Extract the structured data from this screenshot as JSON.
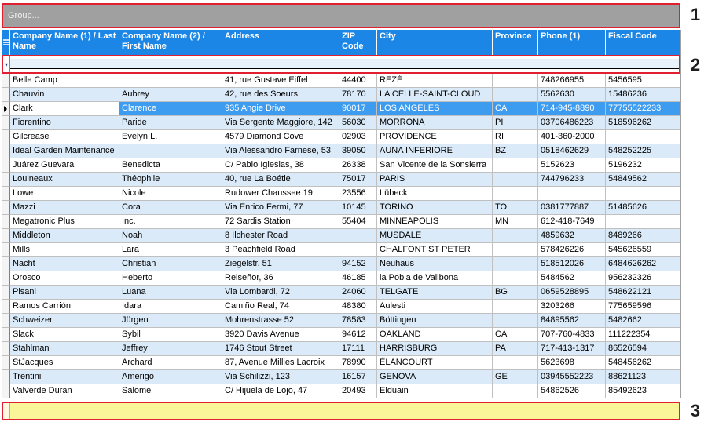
{
  "group_panel": {
    "placeholder": "Group..."
  },
  "callouts": [
    "1",
    "2",
    "3"
  ],
  "columns": [
    {
      "key": "c1",
      "label": "Company Name (1) / Last Name"
    },
    {
      "key": "c2",
      "label": "Company Name (2) / First Name"
    },
    {
      "key": "c3",
      "label": "Address"
    },
    {
      "key": "c4",
      "label": "ZIP Code"
    },
    {
      "key": "c5",
      "label": "City"
    },
    {
      "key": "c6",
      "label": "Province"
    },
    {
      "key": "c7",
      "label": "Phone (1)"
    },
    {
      "key": "c8",
      "label": "Fiscal Code"
    }
  ],
  "active_row_index": 2,
  "rows": [
    [
      "Belle Camp",
      "",
      "41, rue Gustave Eiffel",
      "44400",
      "REZÉ",
      "",
      "748266955",
      "5456595"
    ],
    [
      "Chauvin",
      "Aubrey",
      "42, rue des Soeurs",
      "78170",
      "LA CELLE-SAINT-CLOUD",
      "",
      "5562630",
      "15486236"
    ],
    [
      "Clark",
      "Clarence",
      "935 Angie Drive",
      "90017",
      "LOS ANGELES",
      "CA",
      "714-945-8890",
      "77755522233"
    ],
    [
      "Fiorentino",
      "Paride",
      "Via Sergente Maggiore, 142",
      "56030",
      "MORRONA",
      "PI",
      "03706486223",
      "518596262"
    ],
    [
      "Gilcrease",
      "Evelyn L.",
      "4579 Diamond Cove",
      "02903",
      "PROVIDENCE",
      "RI",
      "401-360-2000",
      ""
    ],
    [
      "Ideal Garden Maintenance",
      "",
      "Via Alessandro Farnese, 53",
      "39050",
      "AUNA INFERIORE",
      "BZ",
      "0518462629",
      "548252225"
    ],
    [
      "Juárez Guevara",
      "Benedicta",
      "C/ Pablo Iglesias, 38",
      "26338",
      "San Vicente de la Sonsierra",
      "",
      "5152623",
      "5196232"
    ],
    [
      "Louineaux",
      "Théophile",
      "40, rue La Boétie",
      "75017",
      "PARIS",
      "",
      "744796233",
      "54849562"
    ],
    [
      "Lowe",
      "Nicole",
      "Rudower Chaussee 19",
      "23556",
      "Lübeck",
      "",
      "",
      ""
    ],
    [
      "Mazzi",
      "Cora",
      "Via Enrico Fermi, 77",
      "10145",
      "TORINO",
      "TO",
      "0381777887",
      "51485626"
    ],
    [
      "Megatronic Plus",
      "Inc.",
      "72 Sardis Station",
      "55404",
      "MINNEAPOLIS",
      "MN",
      "612-418-7649",
      ""
    ],
    [
      "Middleton",
      "Noah",
      "8 Ilchester Road",
      "",
      "MUSDALE",
      "",
      "4859632",
      "8489266"
    ],
    [
      "Mills",
      "Lara",
      "3 Peachfield Road",
      "",
      "CHALFONT ST PETER",
      "",
      "578426226",
      "545626559"
    ],
    [
      "Nacht",
      "Christian",
      "Ziegelstr. 51",
      "94152",
      "Neuhaus",
      "",
      "518512026",
      "6484626262"
    ],
    [
      "Orosco",
      "Heberto",
      "Reiseñor, 36",
      "46185",
      "la Pobla de Vallbona",
      "",
      "5484562",
      "956232326"
    ],
    [
      "Pisani",
      "Luana",
      "Via Lombardi, 72",
      "24060",
      "TELGATE",
      "BG",
      "0659528895",
      "548622121"
    ],
    [
      "Ramos Carrión",
      "Idara",
      "Camiño Real, 74",
      "48380",
      "Aulesti",
      "",
      "3203266",
      "775659596"
    ],
    [
      "Schweizer",
      "Jürgen",
      "Mohrenstrasse 52",
      "78583",
      "Böttingen",
      "",
      "84895562",
      "5482662"
    ],
    [
      "Slack",
      "Sybil",
      "3920 Davis Avenue",
      "94612",
      "OAKLAND",
      "CA",
      "707-760-4833",
      "111222354"
    ],
    [
      "Stahlman",
      "Jeffrey",
      "1746 Stout Street",
      "17111",
      "HARRISBURG",
      "PA",
      "717-413-1317",
      "86526594"
    ],
    [
      "StJacques",
      "Archard",
      "87, Avenue Millies Lacroix",
      "78990",
      "ÉLANCOURT",
      "",
      "5623698",
      "548456262"
    ],
    [
      "Trentini",
      "Amerigo",
      "Via Schilizzi, 123",
      "16157",
      "GENOVA",
      "GE",
      "03945552223",
      "88621123"
    ],
    [
      "Valverde Duran",
      "Salomè",
      "C/ Hijuela de Lojo, 47",
      "20493",
      "Elduain",
      "",
      "54862526",
      "85492623"
    ]
  ]
}
